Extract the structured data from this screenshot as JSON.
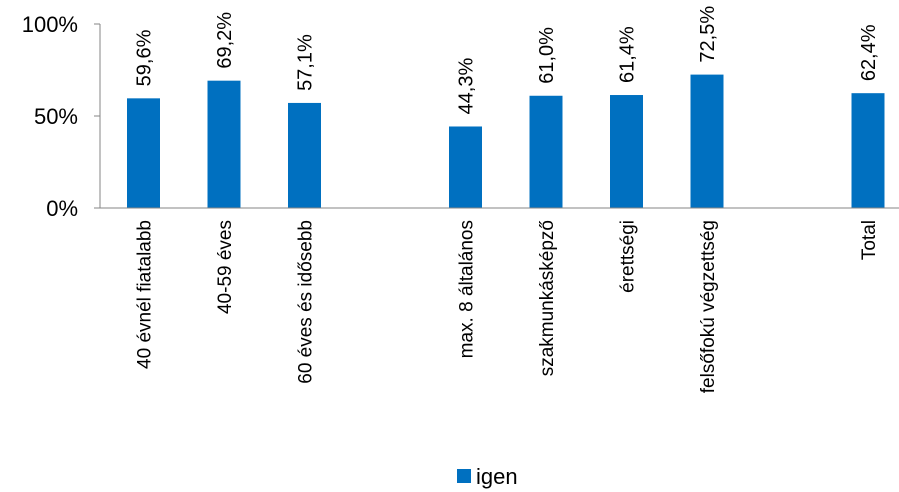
{
  "chart_data": {
    "type": "bar",
    "categories": [
      "40 évnél fiatalabb",
      "40-59 éves",
      "60 éves és idősebb",
      "",
      "max. 8 általános",
      "szakmunkásképző",
      "érettségi",
      "felsőfokú végzettség",
      "",
      "Total"
    ],
    "series": [
      {
        "name": "igen",
        "color": "#0070c0",
        "values": [
          59.6,
          69.2,
          57.1,
          null,
          44.3,
          61.0,
          61.4,
          72.5,
          null,
          62.4
        ],
        "labels": [
          "59,6%",
          "69,2%",
          "57,1%",
          "",
          "44,3%",
          "61,0%",
          "61,4%",
          "72,5%",
          "",
          "62,4%"
        ]
      }
    ],
    "yticks": [
      {
        "value": 0,
        "label": "0%"
      },
      {
        "value": 50,
        "label": "50%"
      },
      {
        "value": 100,
        "label": "100%"
      }
    ],
    "ylim": [
      0,
      100
    ],
    "grid": false,
    "legend": {
      "position": "bottom",
      "label": "igen"
    }
  }
}
